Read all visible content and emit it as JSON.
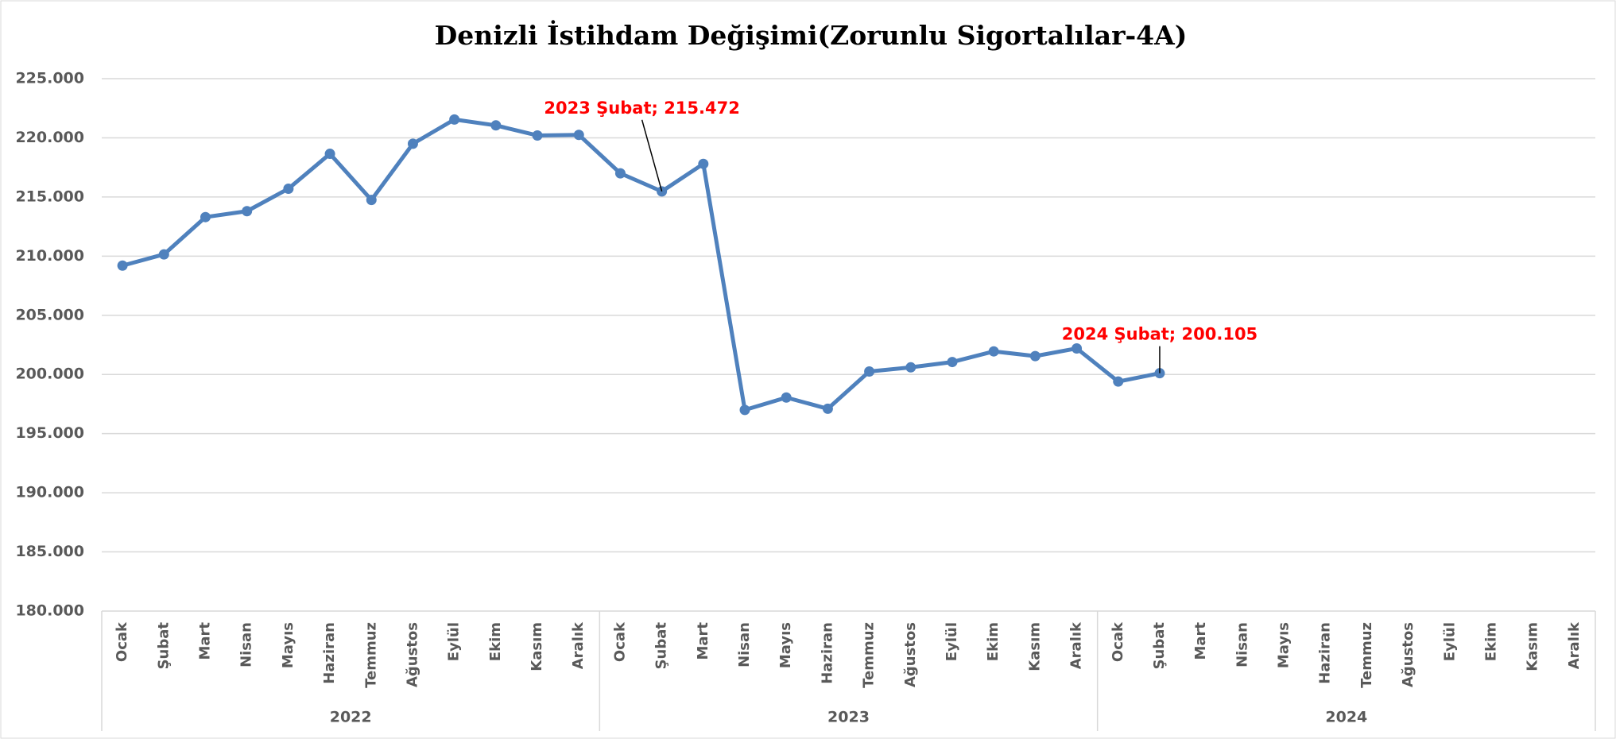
{
  "chart_data": {
    "type": "line",
    "title": "Denizli İstihdam Değişimi(Zorunlu Sigortalılar-4A)",
    "categories": [
      "Ocak",
      "Şubat",
      "Mart",
      "Nisan",
      "Mayıs",
      "Haziran",
      "Temmuz",
      "Ağustos",
      "Eylül",
      "Ekim",
      "Kasım",
      "Aralık",
      "Ocak",
      "Şubat",
      "Mart",
      "Nisan",
      "Mayıs",
      "Haziran",
      "Temmuz",
      "Ağustos",
      "Eylül",
      "Ekim",
      "Kasım",
      "Aralık",
      "Ocak",
      "Şubat",
      "Mart",
      "Nisan",
      "Mayıs",
      "Haziran",
      "Temmuz",
      "Ağustos",
      "Eylül",
      "Ekim",
      "Kasım",
      "Aralık"
    ],
    "groups": [
      "2022",
      "2023",
      "2024"
    ],
    "series": [
      {
        "name": "Zorunlu Sigortalılar-4A",
        "color": "#4f81bd",
        "values": [
          209200,
          210150,
          213300,
          213800,
          215700,
          218650,
          214750,
          219500,
          221550,
          221050,
          220200,
          220250,
          217000,
          215472,
          217800,
          197000,
          198050,
          197100,
          200250,
          200600,
          201050,
          201950,
          201550,
          202200,
          199400,
          200105,
          null,
          null,
          null,
          null,
          null,
          null,
          null,
          null,
          null,
          null
        ],
        "value_labels": [
          null,
          null,
          null,
          null,
          null,
          null,
          null,
          null,
          null,
          null,
          null,
          null,
          null,
          "2023 Şubat; 215.472",
          null,
          null,
          null,
          null,
          null,
          null,
          null,
          null,
          null,
          null,
          null,
          "2024 Şubat; 200.105",
          null,
          null,
          null,
          null,
          null,
          null,
          null,
          null,
          null,
          null
        ],
        "label_color": "#ff0000"
      }
    ],
    "ylim": [
      180000,
      225000
    ],
    "yticks": [
      {
        "value": 180000,
        "label": "180.000"
      },
      {
        "value": 185000,
        "label": "185.000"
      },
      {
        "value": 190000,
        "label": "190.000"
      },
      {
        "value": 195000,
        "label": "195.000"
      },
      {
        "value": 200000,
        "label": "200.000"
      },
      {
        "value": 205000,
        "label": "205.000"
      },
      {
        "value": 210000,
        "label": "210.000"
      },
      {
        "value": 215000,
        "label": "215.000"
      },
      {
        "value": 220000,
        "label": "220.000"
      },
      {
        "value": 225000,
        "label": "225.000"
      }
    ],
    "grid": true
  }
}
